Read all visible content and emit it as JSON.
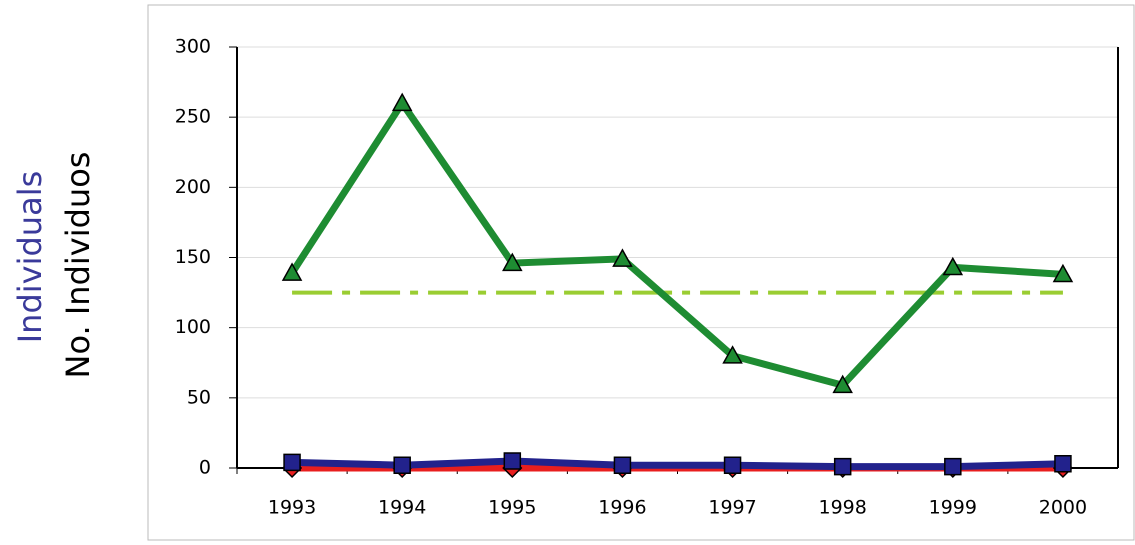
{
  "chart_data": {
    "type": "line",
    "y_labels": [
      "Individuals",
      "No. Individuos"
    ],
    "categories": [
      "1993",
      "1994",
      "1995",
      "1996",
      "1997",
      "1998",
      "1999",
      "2000"
    ],
    "series": [
      {
        "color": "#9acd32",
        "dash": true,
        "values": [
          125,
          125,
          125,
          125,
          125,
          125,
          125,
          125
        ]
      },
      {
        "color": "#1e8c32",
        "marker": "triangle",
        "values": [
          139,
          260,
          146,
          149,
          80,
          59,
          143,
          138
        ]
      },
      {
        "color": "#e81e1e",
        "marker": "diamond",
        "values": [
          0,
          0,
          0,
          0,
          0,
          0,
          0,
          0
        ]
      },
      {
        "color": "#22228c",
        "marker": "square",
        "values": [
          4,
          2,
          5,
          2,
          2,
          1,
          1,
          3
        ]
      }
    ],
    "ylim": [
      0,
      300
    ],
    "yticks": [
      0,
      50,
      100,
      150,
      200,
      250,
      300
    ],
    "grid": true
  }
}
